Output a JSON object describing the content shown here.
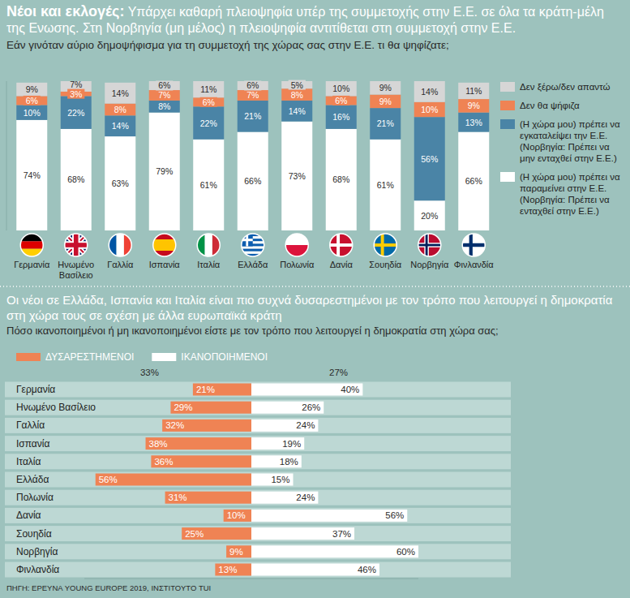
{
  "chart_data": [
    {
      "type": "bar",
      "stacked": true,
      "title": "Νέοι και εκλογές:",
      "subtitle": "Υπάρχει καθαρή πλειοψηφία υπέρ της συμμετοχής στην Ε.Ε. σε όλα τα κράτη-μέλη της Ενωσης. Στη Νορβηγία (μη μέλος) η πλειοψηφία αντιτίθεται στη συμμετοχή στην Ε.Ε.",
      "annotations": [
        "Εάν γινόταν αύριο δημοψήφισμα για τη συμμετοχή της χώρας σας στην Ε.Ε. τι θα ψηφίζατε;"
      ],
      "categories": [
        "Γερμανία",
        "Ηνωμένο Βασίλειο",
        "Γαλλία",
        "Ισπανία",
        "Ιταλία",
        "Ελλάδα",
        "Πολωνία",
        "Δανία",
        "Σουηδία",
        "Νορβηγία",
        "Φινλανδία"
      ],
      "series": [
        {
          "name": "(Η χώρα μου) πρέπει να παραμείνει στην Ε.Ε. (Νορβηγία: Πρέπει να ενταχθεί στην Ε.Ε.)",
          "color": "#ffffff",
          "values": [
            74,
            68,
            63,
            79,
            61,
            66,
            73,
            68,
            61,
            20,
            66
          ],
          "value_labels": [
            "74%",
            "68%",
            "63%",
            "79%",
            "61%",
            "66%",
            "73%",
            "68%",
            "61%",
            "20%",
            "66%"
          ]
        },
        {
          "name": "(Η χώρα μου) πρέπει να εγκαταλείψει την Ε.Ε. (Νορβηγία: Πρέπει να μην ενταχθεί στην Ε.Ε.)",
          "color": "#4a84a6",
          "values": [
            10,
            22,
            14,
            8,
            22,
            21,
            14,
            16,
            21,
            56,
            13
          ],
          "value_labels": [
            "10%",
            "22%",
            "14%",
            "8%",
            "22%",
            "21%",
            "14%",
            "16%",
            "21%",
            "56%",
            "13%"
          ]
        },
        {
          "name": "Δεν θα ψήφιζα",
          "color": "#ef8354",
          "values": [
            6,
            3,
            8,
            7,
            6,
            7,
            8,
            6,
            9,
            10,
            9
          ],
          "value_labels": [
            "6%",
            "3%",
            "8%",
            "7%",
            "6%",
            "7%",
            "8%",
            "6%",
            "9%",
            "10%",
            "9%"
          ]
        },
        {
          "name": "Δεν ξέρω/δεν απαντώ",
          "color": "#d6d6d6",
          "values": [
            9,
            7,
            14,
            6,
            11,
            6,
            5,
            10,
            9,
            14,
            11
          ],
          "value_labels": [
            "9%",
            "7%",
            "14%",
            "6%",
            "11%",
            "6%",
            "5%",
            "10%",
            "9%",
            "14%",
            "11%"
          ]
        }
      ],
      "ylim": [
        0,
        100
      ],
      "yticks": [],
      "tick_labels": "x",
      "data_labels": true,
      "legend": "right",
      "grid": false
    },
    {
      "type": "bar",
      "orientation": "horizontal",
      "title": "Οι νέοι σε Ελλάδα, Ισπανία και Ιταλία είναι πιο συχνά δυσαρεστημένοι με τον τρόπο που λειτουργεί η δημοκρατία στη χώρα τους σε σχέση με άλλα ευρωπαϊκά κράτη",
      "subtitle": "Πόσο ικανοποιημένοι ή μη ικανοποιημένοι είστε με τον τρόπο που λειτουργεί η δημοκρατία στη χώρα σας;",
      "annotations": [
        "33%",
        "27%"
      ],
      "categories": [
        "Γερμανία",
        "Ηνωμένο Βασίλειο",
        "Γαλλία",
        "Ισπανία",
        "Ιταλία",
        "Ελλάδα",
        "Πολωνία",
        "Δανία",
        "Σουηδία",
        "Νορβηγία",
        "Φινλανδία"
      ],
      "series": [
        {
          "name": "ΔΥΣΑΡΕΣΤΗΜΕΝΟΙ",
          "color": "#ef8354",
          "values": [
            21,
            29,
            32,
            38,
            36,
            56,
            31,
            10,
            25,
            9,
            13
          ],
          "value_labels": [
            "21%",
            "29%",
            "32%",
            "38%",
            "36%",
            "56%",
            "31%",
            "10%",
            "25%",
            "9%",
            "13%"
          ]
        },
        {
          "name": "ΙΚΑΝΟΠΟΙΗΜΕΝΟΙ",
          "color": "#ffffff",
          "values": [
            40,
            26,
            24,
            19,
            18,
            15,
            24,
            56,
            37,
            60,
            46
          ],
          "value_labels": [
            "40%",
            "26%",
            "24%",
            "19%",
            "18%",
            "15%",
            "24%",
            "56%",
            "37%",
            "60%",
            "46%"
          ]
        }
      ],
      "xlim": [
        0,
        60
      ],
      "xticks": [],
      "tick_labels": "y",
      "data_labels": true,
      "legend": "top",
      "grid": false
    }
  ],
  "source": "ΠΗΓΗ: ΕΡΕΥΝΑ YOUNG EUROPE 2019, ΙΝΣΤΙΤΟΥΤΟ TUI"
}
